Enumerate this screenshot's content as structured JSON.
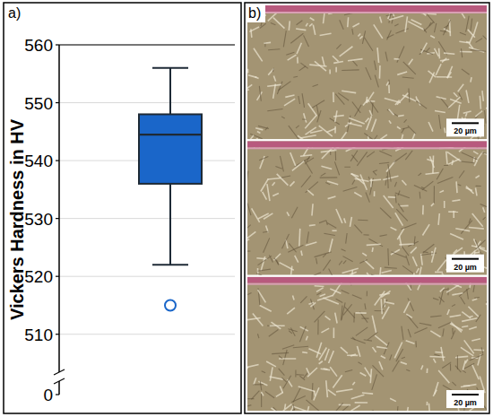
{
  "chart_data": {
    "type": "box",
    "panel_label": "a)",
    "y_label": "Vickers Hardness in HV",
    "box": {
      "whisker_low": 522,
      "q1": 536,
      "median": 544.5,
      "q3": 548,
      "whisker_high": 556,
      "outliers": [
        515
      ]
    },
    "color": "#1a66c9",
    "ylim": [
      0,
      560
    ],
    "y_break": [
      0,
      505
    ],
    "yticks": [
      0,
      510,
      520,
      530,
      540,
      550,
      560
    ],
    "grid": true,
    "tick_labels": "y"
  },
  "micrographs": {
    "panel_label": "b)",
    "images": [
      {
        "scale_bar": "20 µm"
      },
      {
        "scale_bar": "20 µm"
      },
      {
        "scale_bar": "20 µm"
      }
    ]
  }
}
